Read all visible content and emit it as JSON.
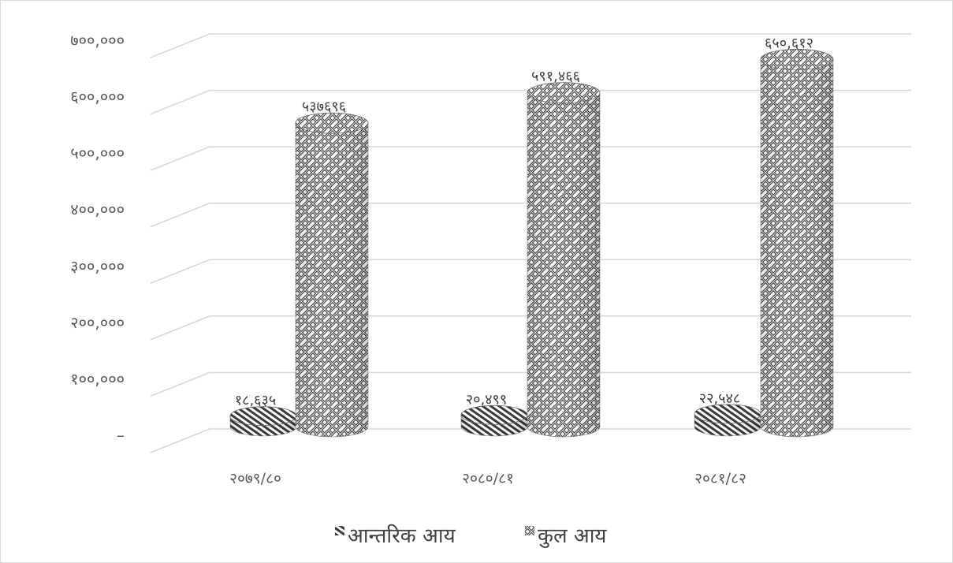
{
  "chart_data": {
    "type": "bar",
    "subtype": "3d-cylinder-clustered",
    "categories": [
      "२०७९/८०",
      "२०८०/८१",
      "२०८१/८२"
    ],
    "series": [
      {
        "name": "आन्तरिक आय",
        "values": [
          18635,
          20499,
          22548
        ],
        "labels": [
          "१८,६३५",
          "२०,४९९",
          "२२,५४८"
        ],
        "pattern": "diagonal-hatch"
      },
      {
        "name": "कुल आय",
        "values": [
          537696,
          591466,
          650612
        ],
        "labels": [
          "५३७६९६",
          "५९१,४६६",
          "६५०,६१२"
        ],
        "pattern": "weave"
      }
    ],
    "y_ticks": [
      0,
      100000,
      200000,
      300000,
      400000,
      500000,
      600000,
      700000
    ],
    "y_tick_labels": [
      "–",
      "१००,०००",
      "२००,०००",
      "३००,०००",
      "४००,०००",
      "५००,०००",
      "६००,०००",
      "७००,०००"
    ],
    "ylim": [
      0,
      700000
    ],
    "grid": true,
    "legend_position": "bottom",
    "title": "",
    "xlabel": "",
    "ylabel": "",
    "colors": {
      "grid": "#d9d9d9",
      "text": "#595959",
      "pattern_ink": "#404040",
      "pattern_bg": "#ffffff"
    }
  }
}
